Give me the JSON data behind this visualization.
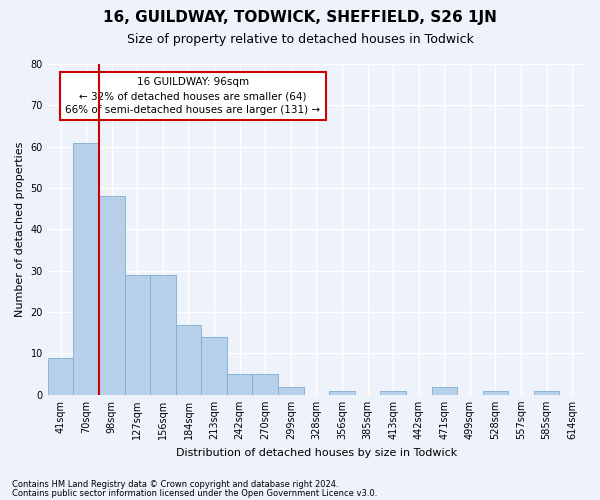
{
  "title": "16, GUILDWAY, TODWICK, SHEFFIELD, S26 1JN",
  "subtitle": "Size of property relative to detached houses in Todwick",
  "xlabel": "Distribution of detached houses by size in Todwick",
  "ylabel": "Number of detached properties",
  "categories": [
    "41sqm",
    "70sqm",
    "98sqm",
    "127sqm",
    "156sqm",
    "184sqm",
    "213sqm",
    "242sqm",
    "270sqm",
    "299sqm",
    "328sqm",
    "356sqm",
    "385sqm",
    "413sqm",
    "442sqm",
    "471sqm",
    "499sqm",
    "528sqm",
    "557sqm",
    "585sqm",
    "614sqm"
  ],
  "values": [
    9,
    61,
    48,
    29,
    29,
    17,
    14,
    5,
    5,
    2,
    0,
    1,
    0,
    1,
    0,
    2,
    0,
    1,
    0,
    1,
    0
  ],
  "bar_color": "#b8d0ea",
  "bar_edge_color": "#7aadd4",
  "vline_color": "#cc0000",
  "ylim": [
    0,
    80
  ],
  "yticks": [
    0,
    10,
    20,
    30,
    40,
    50,
    60,
    70,
    80
  ],
  "annotation_text": "16 GUILDWAY: 96sqm\n← 32% of detached houses are smaller (64)\n66% of semi-detached houses are larger (131) →",
  "annotation_box_color": "#ffffff",
  "annotation_box_edge": "#cc0000",
  "footnote1": "Contains HM Land Registry data © Crown copyright and database right 2024.",
  "footnote2": "Contains public sector information licensed under the Open Government Licence v3.0.",
  "background_color": "#eef2fb",
  "grid_color": "#ffffff",
  "title_fontsize": 11,
  "subtitle_fontsize": 9,
  "label_fontsize": 8,
  "tick_fontsize": 7,
  "annot_fontsize": 7.5,
  "footnote_fontsize": 6
}
